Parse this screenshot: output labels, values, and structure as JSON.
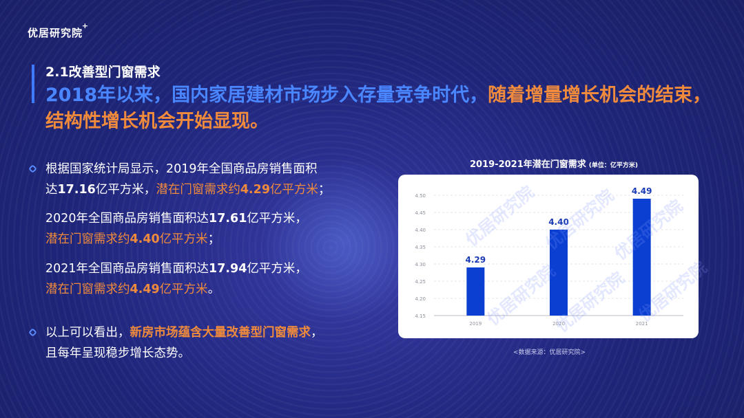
{
  "logo": {
    "text": "优居研究院",
    "plus": "+"
  },
  "header": {
    "subtitle": "2.1改善型门窗需求",
    "headline_part1": "2018年以来，国内家居建材市场步入存量竞争时代，",
    "headline_part2": "随着增量增长机会的结束，",
    "headline_part3": "结构性增长机会开始显现。"
  },
  "body": {
    "p1_a": "根据国家统计局显示，2019年全国商品房销售面积",
    "p1_b": "达",
    "p1_num": "17.16",
    "p1_c": "亿平方米，",
    "p1_d": "潜在门窗需求约",
    "p1_e": "4.29",
    "p1_f": "亿平方米",
    "p1_g": "；",
    "p2_a": "2020年全国商品房销售面积达",
    "p2_num": "17.61",
    "p2_b": "亿平方米，",
    "p2_c": "潜在门窗需求约",
    "p2_d": "4.40",
    "p2_e": "亿平方米",
    "p2_f": "；",
    "p3_a": "2021年全国商品房销售面积达",
    "p3_num": "17.94",
    "p3_b": "亿平方米，",
    "p3_c": "潜在门窗需求约",
    "p3_d": "4.49",
    "p3_e": "亿平方米",
    "p3_f": "。",
    "p4_a": "以上可以看出，",
    "p4_b": "新房市场蕴含大量改善型门窗需求",
    "p4_c": "，",
    "p4_d": "且每年呈现稳步增长态势。"
  },
  "source": "<数据来源：优居研究院>",
  "colors": {
    "bar": "#0a3fd1",
    "accent_orange": "#f08a3c",
    "accent_blue": "#4a86ff"
  },
  "chart_data": {
    "type": "bar",
    "title": "2019-2021年潜在门窗需求",
    "unit_label": "(单位：亿平方米)",
    "categories": [
      "2019",
      "2020",
      "2021"
    ],
    "values": [
      4.29,
      4.4,
      4.49
    ],
    "value_labels": [
      "4.29",
      "4.40",
      "4.49"
    ],
    "ylim": [
      4.15,
      4.5
    ],
    "yticks": [
      "4.50",
      "4.45",
      "4.40",
      "4.35",
      "4.30",
      "4.25",
      "4.20",
      "4.15"
    ],
    "grid": true
  }
}
